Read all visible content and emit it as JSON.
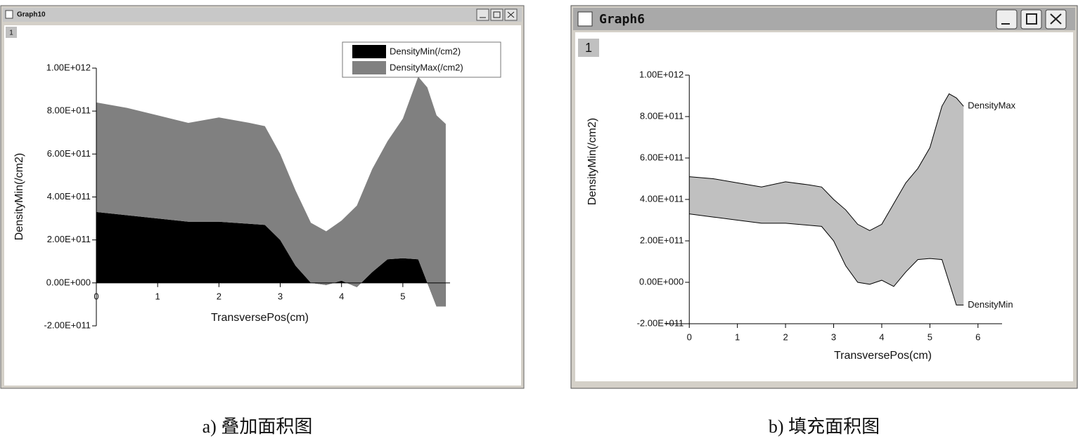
{
  "chart_data": [
    {
      "type": "area",
      "stacked": true,
      "window_title": "Graph10",
      "layer_label": "1",
      "caption": "a) 叠加面积图",
      "xlabel": "TransversePos(cm)",
      "ylabel": "DensityMin(/cm2)",
      "x": [
        0,
        0.5,
        1,
        1.5,
        2,
        2.5,
        2.75,
        3,
        3.25,
        3.5,
        3.75,
        4,
        4.25,
        4.5,
        4.75,
        5,
        5.25,
        5.4,
        5.55,
        5.7
      ],
      "series": [
        {
          "name": "DensityMin(/cm2)",
          "color": "#000000",
          "values": [
            330000000000.0,
            315000000000.0,
            300000000000.0,
            285000000000.0,
            285000000000.0,
            275000000000.0,
            270000000000.0,
            200000000000.0,
            80000000000.0,
            0,
            -10000000000.0,
            10000000000.0,
            -20000000000.0,
            50000000000.0,
            110000000000.0,
            115000000000.0,
            110000000000.0,
            0,
            -110000000000.0,
            -110000000000.0
          ]
        },
        {
          "name": "DensityMax(/cm2)",
          "color": "#808080",
          "values": [
            510000000000.0,
            500000000000.0,
            480000000000.0,
            460000000000.0,
            485000000000.0,
            470000000000.0,
            460000000000.0,
            400000000000.0,
            350000000000.0,
            280000000000.0,
            250000000000.0,
            280000000000.0,
            380000000000.0,
            480000000000.0,
            550000000000.0,
            650000000000.0,
            850000000000.0,
            910000000000.0,
            890000000000.0,
            850000000000.0
          ]
        }
      ],
      "xlim": [
        0,
        5.77
      ],
      "ylim": [
        -200000000000.0,
        1000000000000.0
      ],
      "xticks": [
        0,
        1,
        2,
        3,
        4,
        5
      ],
      "yticks": [
        {
          "value": -200000000000.0,
          "label": "-2.00E+011"
        },
        {
          "value": 0,
          "label": "0.00E+000"
        },
        {
          "value": 200000000000.0,
          "label": "2.00E+011"
        },
        {
          "value": 400000000000.0,
          "label": "4.00E+011"
        },
        {
          "value": 600000000000.0,
          "label": "6.00E+011"
        },
        {
          "value": 800000000000.0,
          "label": "8.00E+011"
        },
        {
          "value": 1000000000000.0,
          "label": "1.00E+012"
        }
      ],
      "legend": "upper right",
      "x_axis_at_zero": true
    },
    {
      "type": "area",
      "stacked": false,
      "fill_between": "#c0c0c0",
      "window_title": "Graph6",
      "layer_label": "1",
      "caption": "b) 填充面积图",
      "xlabel": "TransversePos(cm)",
      "ylabel": "DensityMin(/cm2)",
      "x": [
        0,
        0.5,
        1,
        1.5,
        2,
        2.5,
        2.75,
        3,
        3.25,
        3.5,
        3.75,
        4,
        4.25,
        4.5,
        4.75,
        5,
        5.25,
        5.4,
        5.55,
        5.7
      ],
      "series": [
        {
          "name": "DensityMin",
          "color": "#000000",
          "values": [
            330000000000.0,
            315000000000.0,
            300000000000.0,
            285000000000.0,
            285000000000.0,
            275000000000.0,
            270000000000.0,
            200000000000.0,
            80000000000.0,
            0,
            -10000000000.0,
            10000000000.0,
            -20000000000.0,
            50000000000.0,
            110000000000.0,
            115000000000.0,
            110000000000.0,
            0,
            -110000000000.0,
            -110000000000.0
          ]
        },
        {
          "name": "DensityMax",
          "color": "#000000",
          "values": [
            510000000000.0,
            500000000000.0,
            480000000000.0,
            460000000000.0,
            485000000000.0,
            470000000000.0,
            460000000000.0,
            400000000000.0,
            350000000000.0,
            280000000000.0,
            250000000000.0,
            280000000000.0,
            380000000000.0,
            480000000000.0,
            550000000000.0,
            650000000000.0,
            850000000000.0,
            910000000000.0,
            890000000000.0,
            850000000000.0
          ]
        }
      ],
      "xlim": [
        -0.5,
        6.5
      ],
      "ylim": [
        -200000000000.0,
        1000000000000.0
      ],
      "xticks": [
        0,
        1,
        2,
        3,
        4,
        5,
        6
      ],
      "yticks": [
        {
          "value": -200000000000.0,
          "label": "-2.00E+011"
        },
        {
          "value": 0,
          "label": "0.00E+000"
        },
        {
          "value": 200000000000.0,
          "label": "2.00E+011"
        },
        {
          "value": 400000000000.0,
          "label": "4.00E+011"
        },
        {
          "value": 600000000000.0,
          "label": "6.00E+011"
        },
        {
          "value": 800000000000.0,
          "label": "8.00E+011"
        },
        {
          "value": 1000000000000.0,
          "label": "1.00E+012"
        }
      ],
      "labels_at_end": true,
      "x_axis_at_zero": false
    }
  ]
}
